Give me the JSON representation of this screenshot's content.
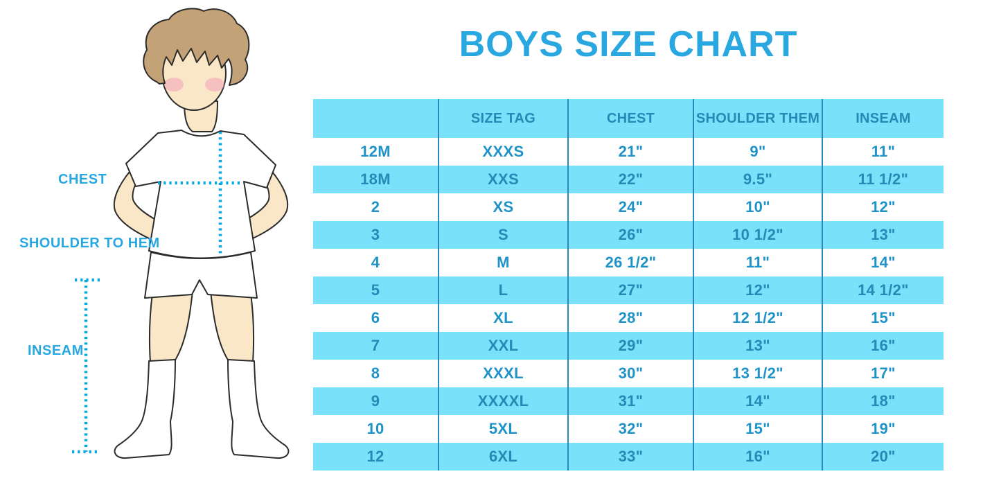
{
  "title": "BOYS SIZE CHART",
  "figure": {
    "description": "illustration of a boy in white t-shirt, shorts and knee socks with measurement guides",
    "labels": {
      "chest": "CHEST",
      "shoulder_to_hem": "SHOULDER TO HEM",
      "inseam": "INSEAM"
    }
  },
  "chart_data": {
    "type": "table",
    "title": "BOYS SIZE CHART",
    "columns": [
      "",
      "SIZE TAG",
      "CHEST",
      "SHOULDER THEM",
      "INSEAM"
    ],
    "rows": [
      [
        "12M",
        "XXXS",
        "21\"",
        "9\"",
        "11\""
      ],
      [
        "18M",
        "XXS",
        "22\"",
        "9.5\"",
        "11 1/2\""
      ],
      [
        "2",
        "XS",
        "24\"",
        "10\"",
        "12\""
      ],
      [
        "3",
        "S",
        "26\"",
        "10 1/2\"",
        "13\""
      ],
      [
        "4",
        "M",
        "26 1/2\"",
        "11\"",
        "14\""
      ],
      [
        "5",
        "L",
        "27\"",
        "12\"",
        "14 1/2\""
      ],
      [
        "6",
        "XL",
        "28\"",
        "12 1/2\"",
        "15\""
      ],
      [
        "7",
        "XXL",
        "29\"",
        "13\"",
        "16\""
      ],
      [
        "8",
        "XXXL",
        "30\"",
        "13 1/2\"",
        "17\""
      ],
      [
        "9",
        "XXXXL",
        "31\"",
        "14\"",
        "18\""
      ],
      [
        "10",
        "5XL",
        "32\"",
        "15\"",
        "19\""
      ],
      [
        "12",
        "6XL",
        "33\"",
        "16\"",
        "20\""
      ]
    ],
    "banded_row_indices": [
      1,
      3,
      5,
      7,
      9,
      11
    ],
    "layout": {
      "header_background": "#79e1f9",
      "band_background": "#79e1f9",
      "grid_lines": "vertical-only"
    }
  },
  "colors": {
    "accent_blue": "#29a7e0",
    "band_light_blue": "#79e1f9",
    "header_text_blue": "#2689b6",
    "cell_text_blue": "#1f93c8",
    "dotted_guide_blue": "#06a9e0",
    "skin": "#fae7c8",
    "hair": "#c3a277",
    "outline": "#2b2b2b",
    "blush": "#f0a0b8"
  }
}
